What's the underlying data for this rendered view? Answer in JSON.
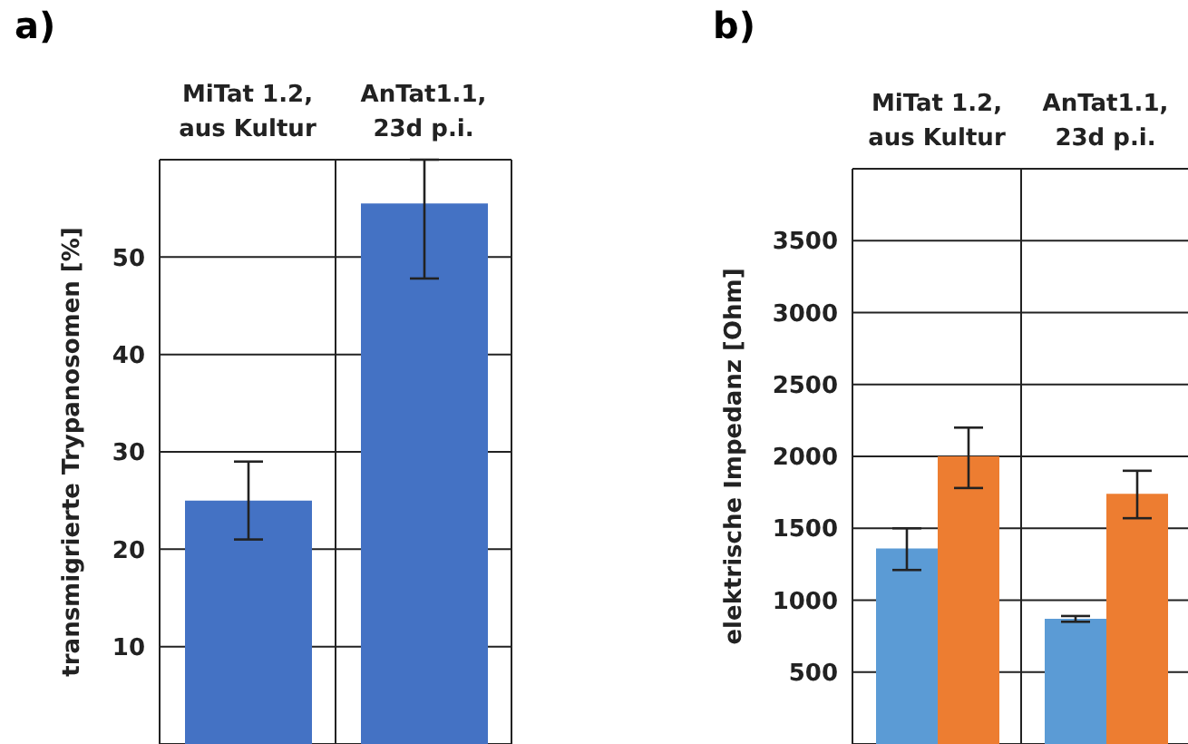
{
  "chart_data": [
    {
      "type": "bar",
      "title": "a)",
      "ylabel": "transmigrierte Trypanosomen [%]",
      "categories": [
        "MiTat 1.2, aus Kultur",
        "AnTat1.1, 23d p.i."
      ],
      "series": [
        {
          "color": "#4472c4",
          "values": [
            25,
            55.5
          ],
          "errors": [
            [
              21,
              29
            ],
            [
              47.8,
              60
            ]
          ]
        }
      ],
      "ylim": [
        0,
        60
      ],
      "yticks": [
        10,
        20,
        30,
        40,
        50
      ],
      "grid": true,
      "legend": false
    },
    {
      "type": "bar",
      "title": "b)",
      "ylabel": "elektrische Impedanz [Ohm]",
      "categories": [
        "MiTat 1.2, aus Kultur",
        "AnTat1.1, 23d p.i."
      ],
      "series": [
        {
          "color": "#5b9bd5",
          "values": [
            1360,
            870
          ],
          "errors": [
            [
              1210,
              1500
            ],
            [
              850,
              890
            ]
          ]
        },
        {
          "color": "#ed7d31",
          "values": [
            2000,
            1740
          ],
          "errors": [
            [
              1780,
              2200
            ],
            [
              1570,
              1900
            ]
          ]
        }
      ],
      "ylim": [
        0,
        4000
      ],
      "yticks": [
        500,
        1000,
        1500,
        2000,
        2500,
        3000,
        3500
      ],
      "grid": true,
      "legend": false
    }
  ]
}
